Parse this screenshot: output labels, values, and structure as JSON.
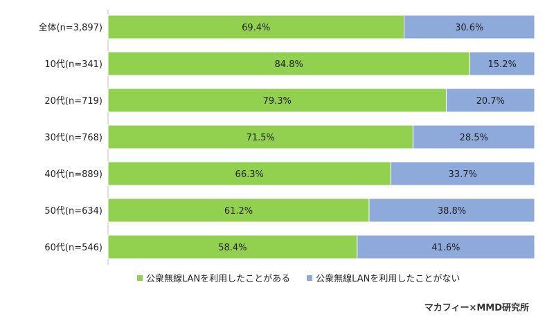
{
  "chart_data": {
    "type": "bar",
    "stacked": true,
    "orientation": "horizontal",
    "categories": [
      "全体(n=3,897)",
      "10代(n=341)",
      "20代(n=719)",
      "30代(n=768)",
      "40代(n=889)",
      "50代(n=634)",
      "60代(n=546)"
    ],
    "series": [
      {
        "name": "公衆無線LANを利用したことがある",
        "color": "#92d050",
        "values": [
          69.4,
          84.8,
          79.3,
          71.5,
          66.3,
          61.2,
          58.4
        ],
        "labels": [
          "69.4%",
          "84.8%",
          "79.3%",
          "71.5%",
          "66.3%",
          "61.2%",
          "58.4%"
        ]
      },
      {
        "name": "公衆無線LANを利用したことがない",
        "color": "#8eaadb",
        "values": [
          30.6,
          15.2,
          20.7,
          28.5,
          33.7,
          38.8,
          41.6
        ],
        "labels": [
          "30.6%",
          "15.2%",
          "20.7%",
          "28.5%",
          "33.7%",
          "38.8%",
          "41.6%"
        ]
      }
    ],
    "xlim": [
      0,
      100
    ],
    "grid": false,
    "legend_position": "bottom"
  },
  "credit": "マカフィー×MMD研究所"
}
